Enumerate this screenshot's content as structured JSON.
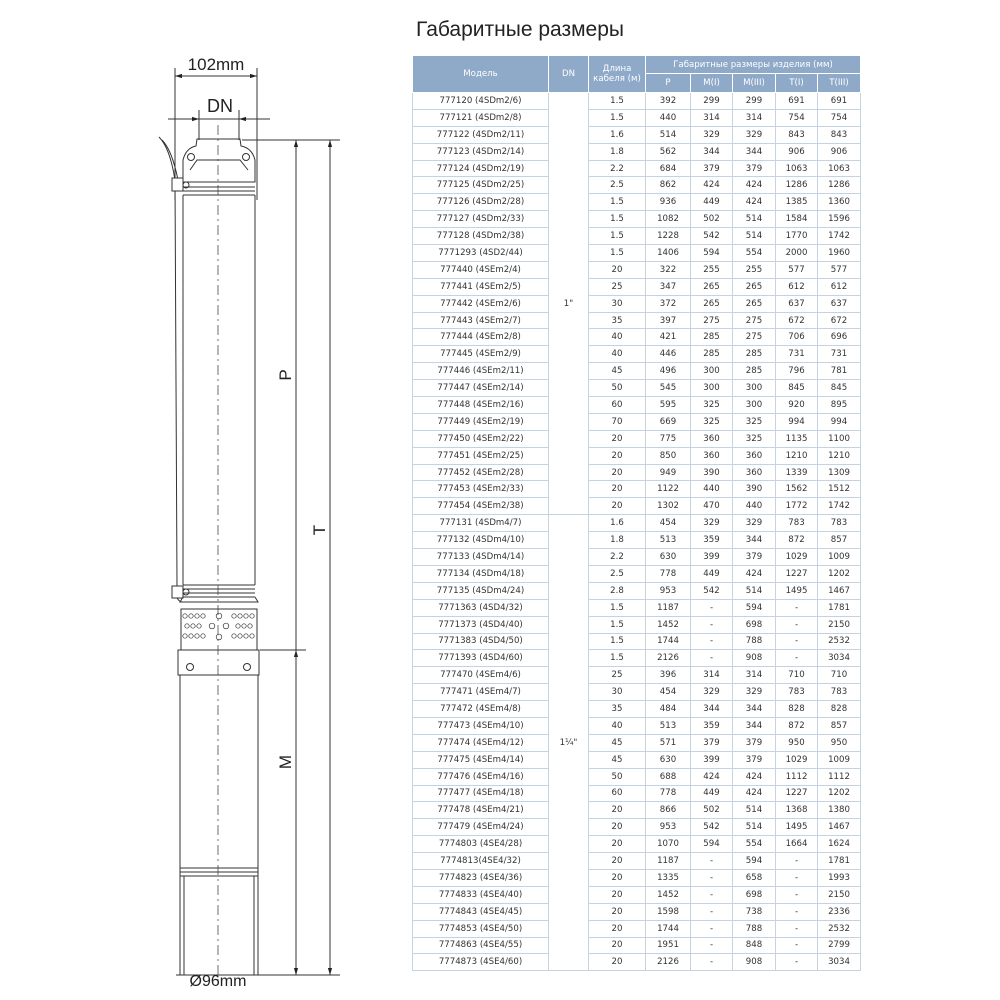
{
  "title": "Габаритные размеры",
  "drawing": {
    "width_label": "102mm",
    "dn_label": "DN",
    "p_label": "P",
    "t_label": "T",
    "m_label": "M",
    "diameter_label": "Ø96mm"
  },
  "table": {
    "header": {
      "model": "Модель",
      "dn": "DN",
      "cable": "Длина кабеля (м)",
      "dimensions": "Габаритные размеры изделия (мм)",
      "cols": [
        "P",
        "M(I)",
        "M(III)",
        "T(I)",
        "T(III)"
      ]
    },
    "groups": [
      {
        "dn": "1\"",
        "rows": [
          [
            "777120 (4SDm2/6)",
            "1.5",
            "392",
            "299",
            "299",
            "691",
            "691"
          ],
          [
            "777121 (4SDm2/8)",
            "1.5",
            "440",
            "314",
            "314",
            "754",
            "754"
          ],
          [
            "777122 (4SDm2/11)",
            "1.6",
            "514",
            "329",
            "329",
            "843",
            "843"
          ],
          [
            "777123 (4SDm2/14)",
            "1.8",
            "562",
            "344",
            "344",
            "906",
            "906"
          ],
          [
            "777124 (4SDm2/19)",
            "2.2",
            "684",
            "379",
            "379",
            "1063",
            "1063"
          ],
          [
            "777125 (4SDm2/25)",
            "2.5",
            "862",
            "424",
            "424",
            "1286",
            "1286"
          ],
          [
            "777126 (4SDm2/28)",
            "1.5",
            "936",
            "449",
            "424",
            "1385",
            "1360"
          ],
          [
            "777127 (4SDm2/33)",
            "1.5",
            "1082",
            "502",
            "514",
            "1584",
            "1596"
          ],
          [
            "777128 (4SDm2/38)",
            "1.5",
            "1228",
            "542",
            "514",
            "1770",
            "1742"
          ],
          [
            "7771293 (4SD2/44)",
            "1.5",
            "1406",
            "594",
            "554",
            "2000",
            "1960"
          ],
          [
            "777440 (4SEm2/4)",
            "20",
            "322",
            "255",
            "255",
            "577",
            "577"
          ],
          [
            "777441 (4SEm2/5)",
            "25",
            "347",
            "265",
            "265",
            "612",
            "612"
          ],
          [
            "777442 (4SEm2/6)",
            "30",
            "372",
            "265",
            "265",
            "637",
            "637"
          ],
          [
            "777443 (4SEm2/7)",
            "35",
            "397",
            "275",
            "275",
            "672",
            "672"
          ],
          [
            "777444 (4SEm2/8)",
            "40",
            "421",
            "285",
            "275",
            "706",
            "696"
          ],
          [
            "777445 (4SEm2/9)",
            "40",
            "446",
            "285",
            "285",
            "731",
            "731"
          ],
          [
            "777446 (4SEm2/11)",
            "45",
            "496",
            "300",
            "285",
            "796",
            "781"
          ],
          [
            "777447 (4SEm2/14)",
            "50",
            "545",
            "300",
            "300",
            "845",
            "845"
          ],
          [
            "777448 (4SEm2/16)",
            "60",
            "595",
            "325",
            "300",
            "920",
            "895"
          ],
          [
            "777449 (4SEm2/19)",
            "70",
            "669",
            "325",
            "325",
            "994",
            "994"
          ],
          [
            "777450 (4SEm2/22)",
            "20",
            "775",
            "360",
            "325",
            "1135",
            "1100"
          ],
          [
            "777451 (4SEm2/25)",
            "20",
            "850",
            "360",
            "360",
            "1210",
            "1210"
          ],
          [
            "777452 (4SEm2/28)",
            "20",
            "949",
            "390",
            "360",
            "1339",
            "1309"
          ],
          [
            "777453 (4SEm2/33)",
            "20",
            "1122",
            "440",
            "390",
            "1562",
            "1512"
          ],
          [
            "777454 (4SEm2/38)",
            "20",
            "1302",
            "470",
            "440",
            "1772",
            "1742"
          ]
        ]
      },
      {
        "dn": "1¼\"",
        "rows": [
          [
            "777131 (4SDm4/7)",
            "1.6",
            "454",
            "329",
            "329",
            "783",
            "783"
          ],
          [
            "777132 (4SDm4/10)",
            "1.8",
            "513",
            "359",
            "344",
            "872",
            "857"
          ],
          [
            "777133 (4SDm4/14)",
            "2.2",
            "630",
            "399",
            "379",
            "1029",
            "1009"
          ],
          [
            "777134 (4SDm4/18)",
            "2.5",
            "778",
            "449",
            "424",
            "1227",
            "1202"
          ],
          [
            "777135 (4SDm4/24)",
            "2.8",
            "953",
            "542",
            "514",
            "1495",
            "1467"
          ],
          [
            "7771363 (4SD4/32)",
            "1.5",
            "1187",
            "-",
            "594",
            "-",
            "1781"
          ],
          [
            "7771373 (4SD4/40)",
            "1.5",
            "1452",
            "-",
            "698",
            "-",
            "2150"
          ],
          [
            "7771383 (4SD4/50)",
            "1.5",
            "1744",
            "-",
            "788",
            "-",
            "2532"
          ],
          [
            "7771393 (4SD4/60)",
            "1.5",
            "2126",
            "-",
            "908",
            "-",
            "3034"
          ],
          [
            "777470 (4SEm4/6)",
            "25",
            "396",
            "314",
            "314",
            "710",
            "710"
          ],
          [
            "777471 (4SEm4/7)",
            "30",
            "454",
            "329",
            "329",
            "783",
            "783"
          ],
          [
            "777472 (4SEm4/8)",
            "35",
            "484",
            "344",
            "344",
            "828",
            "828"
          ],
          [
            "777473 (4SEm4/10)",
            "40",
            "513",
            "359",
            "344",
            "872",
            "857"
          ],
          [
            "777474 (4SEm4/12)",
            "45",
            "571",
            "379",
            "379",
            "950",
            "950"
          ],
          [
            "777475 (4SEm4/14)",
            "45",
            "630",
            "399",
            "379",
            "1029",
            "1009"
          ],
          [
            "777476 (4SEm4/16)",
            "50",
            "688",
            "424",
            "424",
            "1112",
            "1112"
          ],
          [
            "777477 (4SEm4/18)",
            "60",
            "778",
            "449",
            "424",
            "1227",
            "1202"
          ],
          [
            "777478 (4SEm4/21)",
            "20",
            "866",
            "502",
            "514",
            "1368",
            "1380"
          ],
          [
            "777479 (4SEm4/24)",
            "20",
            "953",
            "542",
            "514",
            "1495",
            "1467"
          ],
          [
            "7774803 (4SE4/28)",
            "20",
            "1070",
            "594",
            "554",
            "1664",
            "1624"
          ],
          [
            "7774813(4SE4/32)",
            "20",
            "1187",
            "-",
            "594",
            "-",
            "1781"
          ],
          [
            "7774823 (4SE4/36)",
            "20",
            "1335",
            "-",
            "658",
            "-",
            "1993"
          ],
          [
            "7774833 (4SE4/40)",
            "20",
            "1452",
            "-",
            "698",
            "-",
            "2150"
          ],
          [
            "7774843 (4SE4/45)",
            "20",
            "1598",
            "-",
            "738",
            "-",
            "2336"
          ],
          [
            "7774853 (4SE4/50)",
            "20",
            "1744",
            "-",
            "788",
            "-",
            "2532"
          ],
          [
            "7774863 (4SE4/55)",
            "20",
            "1951",
            "-",
            "848",
            "-",
            "2799"
          ],
          [
            "7774873 (4SE4/60)",
            "20",
            "2126",
            "-",
            "908",
            "-",
            "3034"
          ]
        ]
      }
    ]
  },
  "colors": {
    "header_bg": "#8fa9c9",
    "grid": "#c5d3e1",
    "line": "#333333"
  }
}
